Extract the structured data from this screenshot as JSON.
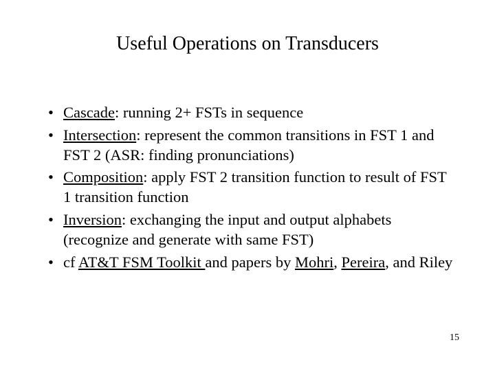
{
  "title": "Useful Operations on Transducers",
  "bullets": {
    "b0": {
      "term": "Cascade",
      "rest": ": running 2+ FSTs in sequence"
    },
    "b1": {
      "term": "Intersection",
      "rest": ": represent the common transitions in FST 1 and FST 2 (ASR: finding pronunciations)"
    },
    "b2": {
      "term": "Composition",
      "rest": ": apply FST 2 transition function to result of FST 1 transition function"
    },
    "b3": {
      "term": "Inversion",
      "rest": ":  exchanging the input and output alphabets (recognize and generate with same FST)"
    },
    "b4": {
      "pre": "cf ",
      "link1": "AT&T FSM Toolkit ",
      "mid1": "and papers by ",
      "link2": "Mohri",
      "mid2": ", ",
      "link3": "Pereira",
      "post": ", and Riley"
    }
  },
  "page_number": "15",
  "colors": {
    "background": "#ffffff",
    "text": "#000000"
  },
  "fonts": {
    "title_size_pt": 28,
    "body_size_pt": 22,
    "pagenum_size_pt": 14,
    "family": "Times New Roman"
  }
}
